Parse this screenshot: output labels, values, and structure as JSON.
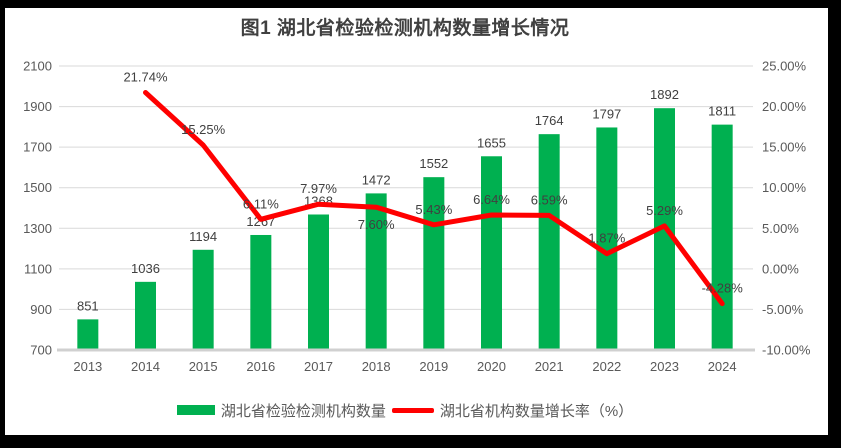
{
  "page": {
    "title": "图1 湖北省检验检测机构数量增长情况"
  },
  "legend": {
    "items": [
      {
        "label": "湖北省检验检测机构数量",
        "swatch": "bar",
        "color": "#00B050"
      },
      {
        "label": "湖北省机构数量增长率（%）",
        "swatch": "line",
        "color": "#FF0000"
      }
    ]
  },
  "chart_data": {
    "type": "bar+line",
    "title": "图1 湖北省检验检测机构数量增长情况",
    "categories": [
      "2013",
      "2014",
      "2015",
      "2016",
      "2017",
      "2018",
      "2019",
      "2020",
      "2021",
      "2022",
      "2023",
      "2024"
    ],
    "series": [
      {
        "name": "湖北省检验检测机构数量",
        "type": "bar",
        "axis": "left",
        "color": "#00B050",
        "values": [
          851,
          1036,
          1194,
          1267,
          1368,
          1472,
          1552,
          1655,
          1764,
          1797,
          1892,
          1811
        ],
        "data_labels": [
          "851",
          "1036",
          "1194",
          "1267",
          "1368",
          "1472",
          "1552",
          "1655",
          "1764",
          "1797",
          "1892",
          "1811"
        ]
      },
      {
        "name": "湖北省机构数量增长率（%）",
        "type": "line",
        "axis": "right",
        "color": "#FF0000",
        "values": [
          null,
          21.74,
          15.25,
          6.11,
          7.97,
          7.6,
          5.43,
          6.64,
          6.59,
          1.87,
          5.29,
          -4.28
        ],
        "data_labels": [
          null,
          "21.74%",
          "15.25%",
          "6.11%",
          "7.97%",
          "7.60%",
          "5.43%",
          "6.64%",
          "6.59%",
          "1.87%",
          "5.29%",
          "-4.28%"
        ],
        "label_placement": [
          null,
          "above",
          "above",
          "above",
          "above",
          "below",
          "above",
          "above",
          "above",
          "above",
          "above",
          "above"
        ]
      }
    ],
    "left_axis": {
      "min": 700,
      "max": 2100,
      "step": 200,
      "tick_labels": [
        "700",
        "900",
        "1100",
        "1300",
        "1500",
        "1700",
        "1900",
        "2100"
      ]
    },
    "right_axis": {
      "min": -10,
      "max": 25,
      "step": 5,
      "tick_labels": [
        "-10.00%",
        "-5.00%",
        "0.00%",
        "5.00%",
        "10.00%",
        "15.00%",
        "20.00%",
        "25.00%"
      ]
    },
    "grid": true,
    "legend_position": "bottom",
    "colors": {
      "grid": "#D9D9D9",
      "axis_line": "#D0D0D0",
      "axis_text": "#595959",
      "data_label_text": "#404040",
      "background": "#FFFFFF",
      "frame": "#000000"
    }
  }
}
